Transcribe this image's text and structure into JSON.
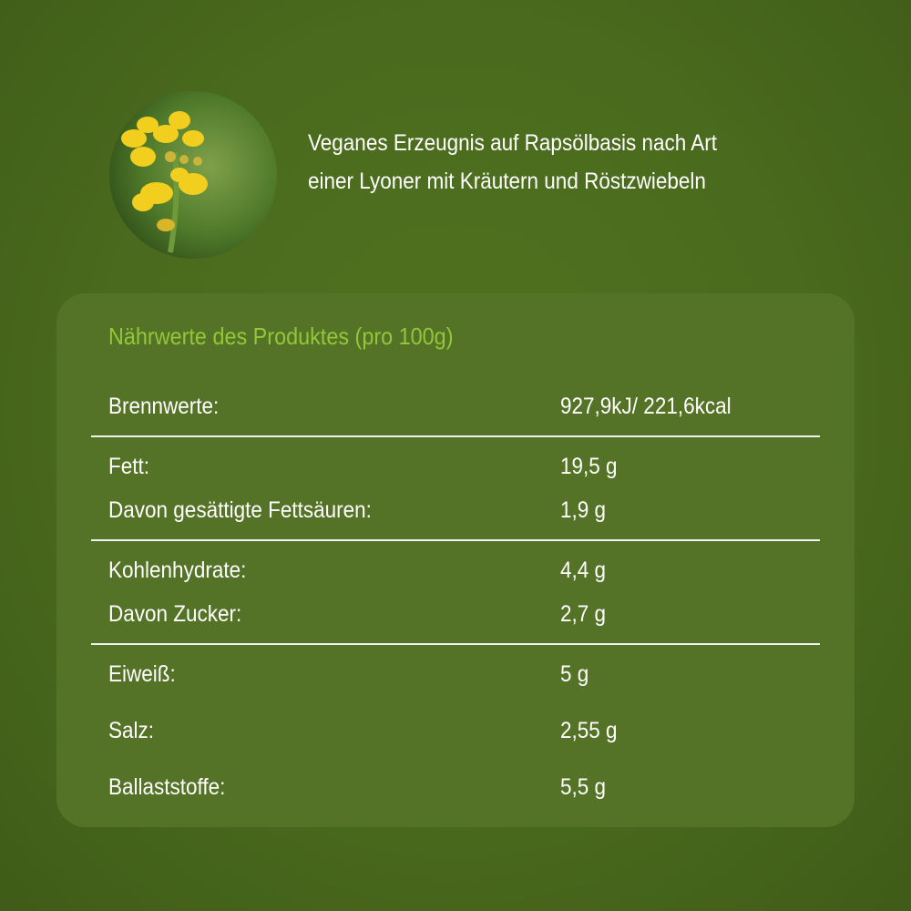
{
  "header": {
    "description": [
      "Veganes Erzeugnis auf Rapsölbasis nach Art",
      "einer Lyoner mit Kräutern und Röstzwiebeln"
    ]
  },
  "table": {
    "title": "Nährwerte des Produktes (pro 100g)",
    "groups": [
      [
        [
          "Brennwerte:",
          "927,9kJ/ 221,6kcal"
        ]
      ],
      [
        [
          "Fett:",
          "19,5 g"
        ],
        [
          "Davon gesättigte Fettsäuren:",
          "1,9 g"
        ]
      ],
      [
        [
          "Kohlenhydrate:",
          "4,4 g"
        ],
        [
          "Davon Zucker:",
          "2,7 g"
        ]
      ],
      [
        [
          "Eiweiß:",
          "5 g"
        ],
        [
          "Salz:",
          "2,55 g"
        ],
        [
          "Ballaststoffe:",
          "5,5 g"
        ]
      ]
    ]
  }
}
